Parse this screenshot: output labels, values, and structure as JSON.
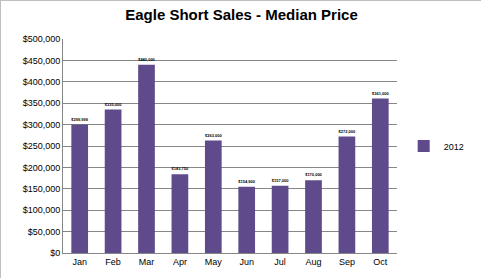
{
  "chart_data": {
    "type": "bar",
    "title": "Eagle Short Sales - Median Price",
    "categories": [
      "Jan",
      "Feb",
      "Mar",
      "Apr",
      "May",
      "Jun",
      "Jul",
      "Aug",
      "Sep",
      "Oct"
    ],
    "series": [
      {
        "name": "2012",
        "color": "#5f4b8b",
        "values": [
          299999,
          335000,
          440000,
          183750,
          263000,
          154900,
          157000,
          170000,
          272000,
          361000
        ],
        "value_labels": [
          "$299,999",
          "$335,000",
          "$440,000",
          "$183,750",
          "$263,000",
          "$154,900",
          "$157,000",
          "$170,000",
          "$272,000",
          "$361,000"
        ]
      }
    ],
    "ylim": [
      0,
      500000
    ],
    "yticks": [
      {
        "value": 0,
        "label": "$0"
      },
      {
        "value": 50000,
        "label": "$50,000"
      },
      {
        "value": 100000,
        "label": "$100,000"
      },
      {
        "value": 150000,
        "label": "$150,000"
      },
      {
        "value": 200000,
        "label": "$200,000"
      },
      {
        "value": 250000,
        "label": "$250,000"
      },
      {
        "value": 300000,
        "label": "$300,000"
      },
      {
        "value": 350000,
        "label": "$350,000"
      },
      {
        "value": 400000,
        "label": "$400,000"
      },
      {
        "value": 450000,
        "label": "$450,000"
      },
      {
        "value": 500000,
        "label": "$500,000"
      }
    ],
    "grid": true,
    "legend": "right",
    "data_labels": true
  }
}
